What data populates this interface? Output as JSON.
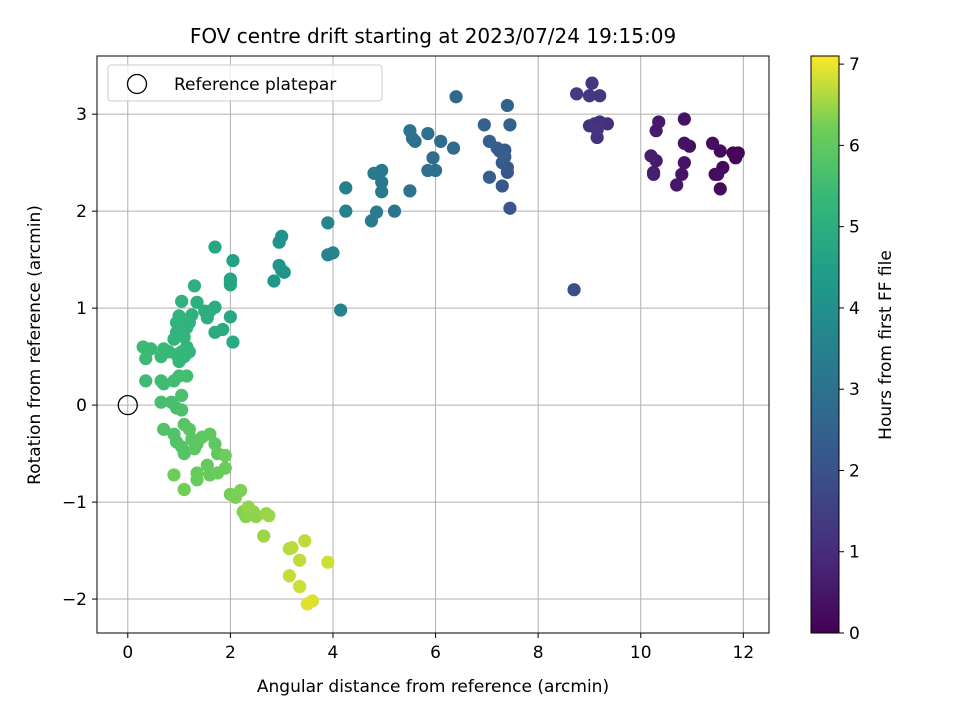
{
  "chart_data": {
    "type": "scatter",
    "title": "FOV centre drift starting at 2023/07/24 19:15:09",
    "xlabel": "Angular distance from reference (arcmin)",
    "ylabel": "Rotation from reference (arcmin)",
    "xlim": [
      -0.6,
      12.5
    ],
    "ylim": [
      -2.35,
      3.6
    ],
    "xticks": [
      0,
      2,
      4,
      6,
      8,
      10,
      12
    ],
    "yticks": [
      -2,
      -1,
      0,
      1,
      2,
      3
    ],
    "grid": true,
    "legend": {
      "position": "top-left",
      "entries": [
        "Reference platepar"
      ]
    },
    "reference_point": {
      "x": 0,
      "y": 0,
      "label": "Reference platepar"
    },
    "colorbar": {
      "label": "Hours from first FF file",
      "min": 0,
      "max": 7.1,
      "ticks": [
        0,
        1,
        2,
        3,
        4,
        5,
        6,
        7
      ],
      "colormap": "viridis"
    },
    "series": [
      {
        "values": [
          {
            "x": 11.9,
            "y": 2.6,
            "c": 0.05
          },
          {
            "x": 11.8,
            "y": 2.6,
            "c": 0.1
          },
          {
            "x": 11.85,
            "y": 2.55,
            "c": 0.12
          },
          {
            "x": 11.6,
            "y": 2.45,
            "c": 0.15
          },
          {
            "x": 11.55,
            "y": 2.62,
            "c": 0.2
          },
          {
            "x": 11.55,
            "y": 2.23,
            "c": 0.22
          },
          {
            "x": 11.45,
            "y": 2.38,
            "c": 0.25
          },
          {
            "x": 11.5,
            "y": 2.38,
            "c": 0.27
          },
          {
            "x": 11.4,
            "y": 2.7,
            "c": 0.3
          },
          {
            "x": 10.95,
            "y": 2.67,
            "c": 0.35
          },
          {
            "x": 10.85,
            "y": 2.7,
            "c": 0.38
          },
          {
            "x": 10.85,
            "y": 2.95,
            "c": 0.4
          },
          {
            "x": 10.85,
            "y": 2.5,
            "c": 0.42
          },
          {
            "x": 10.8,
            "y": 2.38,
            "c": 0.45
          },
          {
            "x": 10.7,
            "y": 2.27,
            "c": 0.48
          },
          {
            "x": 10.35,
            "y": 2.92,
            "c": 0.55
          },
          {
            "x": 10.3,
            "y": 2.83,
            "c": 0.58
          },
          {
            "x": 10.3,
            "y": 2.52,
            "c": 0.6
          },
          {
            "x": 10.25,
            "y": 2.4,
            "c": 0.62
          },
          {
            "x": 10.2,
            "y": 2.57,
            "c": 0.65
          },
          {
            "x": 10.25,
            "y": 2.38,
            "c": 0.68
          },
          {
            "x": 9.35,
            "y": 2.9,
            "c": 1.1
          },
          {
            "x": 9.2,
            "y": 2.92,
            "c": 1.12
          },
          {
            "x": 9.1,
            "y": 2.9,
            "c": 1.15
          },
          {
            "x": 9.0,
            "y": 2.88,
            "c": 1.18
          },
          {
            "x": 9.15,
            "y": 2.76,
            "c": 1.2
          },
          {
            "x": 9.15,
            "y": 2.84,
            "c": 1.22
          },
          {
            "x": 9.05,
            "y": 3.32,
            "c": 1.25
          },
          {
            "x": 9.2,
            "y": 3.19,
            "c": 1.28
          },
          {
            "x": 9.0,
            "y": 3.19,
            "c": 1.3
          },
          {
            "x": 8.75,
            "y": 3.21,
            "c": 1.35
          },
          {
            "x": 8.7,
            "y": 1.19,
            "c": 1.9
          },
          {
            "x": 7.45,
            "y": 2.03,
            "c": 2.1
          },
          {
            "x": 7.4,
            "y": 2.4,
            "c": 2.15
          },
          {
            "x": 7.4,
            "y": 2.45,
            "c": 2.18
          },
          {
            "x": 7.3,
            "y": 2.26,
            "c": 2.2
          },
          {
            "x": 7.3,
            "y": 2.5,
            "c": 2.25
          },
          {
            "x": 7.35,
            "y": 2.63,
            "c": 2.28
          },
          {
            "x": 7.25,
            "y": 2.62,
            "c": 2.3
          },
          {
            "x": 7.2,
            "y": 2.65,
            "c": 2.33
          },
          {
            "x": 7.35,
            "y": 2.56,
            "c": 2.35
          },
          {
            "x": 7.05,
            "y": 2.35,
            "c": 2.38
          },
          {
            "x": 7.05,
            "y": 2.72,
            "c": 2.4
          },
          {
            "x": 6.95,
            "y": 2.89,
            "c": 2.45
          },
          {
            "x": 7.4,
            "y": 3.09,
            "c": 2.5
          },
          {
            "x": 7.45,
            "y": 2.89,
            "c": 2.52
          },
          {
            "x": 6.4,
            "y": 3.18,
            "c": 2.7
          },
          {
            "x": 6.35,
            "y": 2.65,
            "c": 2.75
          },
          {
            "x": 6.1,
            "y": 2.72,
            "c": 2.8
          },
          {
            "x": 5.95,
            "y": 2.55,
            "c": 2.85
          },
          {
            "x": 6.0,
            "y": 2.42,
            "c": 2.88
          },
          {
            "x": 5.85,
            "y": 2.8,
            "c": 2.9
          },
          {
            "x": 5.85,
            "y": 2.42,
            "c": 2.92
          },
          {
            "x": 5.6,
            "y": 2.72,
            "c": 2.95
          },
          {
            "x": 5.55,
            "y": 2.75,
            "c": 2.97
          },
          {
            "x": 5.5,
            "y": 2.83,
            "c": 3.0
          },
          {
            "x": 5.5,
            "y": 2.21,
            "c": 3.05
          },
          {
            "x": 5.2,
            "y": 2.0,
            "c": 3.15
          },
          {
            "x": 4.95,
            "y": 2.42,
            "c": 3.2
          },
          {
            "x": 4.95,
            "y": 2.3,
            "c": 3.22
          },
          {
            "x": 4.95,
            "y": 2.2,
            "c": 3.25
          },
          {
            "x": 4.8,
            "y": 2.39,
            "c": 3.28
          },
          {
            "x": 4.85,
            "y": 1.99,
            "c": 3.3
          },
          {
            "x": 4.75,
            "y": 1.9,
            "c": 3.35
          },
          {
            "x": 4.25,
            "y": 2.24,
            "c": 3.45
          },
          {
            "x": 4.25,
            "y": 2.0,
            "c": 3.5
          },
          {
            "x": 4.15,
            "y": 0.98,
            "c": 3.55
          },
          {
            "x": 4.0,
            "y": 1.57,
            "c": 3.6
          },
          {
            "x": 3.9,
            "y": 1.55,
            "c": 3.62
          },
          {
            "x": 3.9,
            "y": 1.88,
            "c": 3.65
          },
          {
            "x": 3.0,
            "y": 1.74,
            "c": 4.0
          },
          {
            "x": 2.95,
            "y": 1.68,
            "c": 4.05
          },
          {
            "x": 3.05,
            "y": 1.37,
            "c": 4.1
          },
          {
            "x": 3.0,
            "y": 1.39,
            "c": 4.12
          },
          {
            "x": 2.95,
            "y": 1.44,
            "c": 4.15
          },
          {
            "x": 2.85,
            "y": 1.28,
            "c": 4.2
          },
          {
            "x": 2.05,
            "y": 1.49,
            "c": 4.6
          },
          {
            "x": 2.0,
            "y": 1.3,
            "c": 4.65
          },
          {
            "x": 2.0,
            "y": 1.27,
            "c": 4.68
          },
          {
            "x": 2.0,
            "y": 1.24,
            "c": 4.7
          },
          {
            "x": 1.7,
            "y": 1.63,
            "c": 4.75
          },
          {
            "x": 2.0,
            "y": 0.91,
            "c": 4.8
          },
          {
            "x": 2.05,
            "y": 0.65,
            "c": 4.85
          },
          {
            "x": 1.85,
            "y": 0.78,
            "c": 4.9
          },
          {
            "x": 1.7,
            "y": 0.75,
            "c": 4.92
          },
          {
            "x": 1.7,
            "y": 1.01,
            "c": 4.95
          },
          {
            "x": 1.6,
            "y": 0.97,
            "c": 4.97
          },
          {
            "x": 1.55,
            "y": 0.9,
            "c": 5.0
          },
          {
            "x": 1.5,
            "y": 0.97,
            "c": 5.02
          },
          {
            "x": 1.35,
            "y": 1.06,
            "c": 5.05
          },
          {
            "x": 1.3,
            "y": 1.23,
            "c": 5.07
          },
          {
            "x": 1.25,
            "y": 0.93,
            "c": 5.1
          },
          {
            "x": 1.2,
            "y": 0.85,
            "c": 5.12
          },
          {
            "x": 1.15,
            "y": 0.8,
            "c": 5.14
          },
          {
            "x": 1.05,
            "y": 1.07,
            "c": 5.15
          },
          {
            "x": 1.0,
            "y": 0.92,
            "c": 5.17
          },
          {
            "x": 0.95,
            "y": 0.85,
            "c": 5.18
          },
          {
            "x": 0.95,
            "y": 0.75,
            "c": 5.2
          },
          {
            "x": 0.9,
            "y": 0.68,
            "c": 5.22
          },
          {
            "x": 1.1,
            "y": 0.7,
            "c": 5.23
          },
          {
            "x": 1.15,
            "y": 0.6,
            "c": 5.25
          },
          {
            "x": 1.2,
            "y": 0.55,
            "c": 5.27
          },
          {
            "x": 1.1,
            "y": 0.5,
            "c": 5.28
          },
          {
            "x": 1.0,
            "y": 0.45,
            "c": 5.3
          },
          {
            "x": 1.05,
            "y": 0.55,
            "c": 5.32
          },
          {
            "x": 0.95,
            "y": 0.52,
            "c": 5.33
          },
          {
            "x": 0.8,
            "y": 0.55,
            "c": 5.35
          },
          {
            "x": 0.7,
            "y": 0.58,
            "c": 5.37
          },
          {
            "x": 0.65,
            "y": 0.5,
            "c": 5.38
          },
          {
            "x": 0.45,
            "y": 0.58,
            "c": 5.4
          },
          {
            "x": 0.3,
            "y": 0.6,
            "c": 5.42
          },
          {
            "x": 0.35,
            "y": 0.48,
            "c": 5.44
          },
          {
            "x": 0.35,
            "y": 0.25,
            "c": 5.46
          },
          {
            "x": 0.65,
            "y": 0.25,
            "c": 5.48
          },
          {
            "x": 0.7,
            "y": 0.22,
            "c": 5.5
          },
          {
            "x": 0.9,
            "y": 0.25,
            "c": 5.52
          },
          {
            "x": 1.0,
            "y": 0.3,
            "c": 5.54
          },
          {
            "x": 1.15,
            "y": 0.3,
            "c": 5.56
          },
          {
            "x": 0.65,
            "y": 0.03,
            "c": 5.6
          },
          {
            "x": 0.85,
            "y": 0.03,
            "c": 5.62
          },
          {
            "x": 0.95,
            "y": -0.03,
            "c": 5.64
          },
          {
            "x": 1.05,
            "y": -0.05,
            "c": 5.66
          },
          {
            "x": 1.05,
            "y": 0.1,
            "c": 5.68
          },
          {
            "x": 0.7,
            "y": -0.25,
            "c": 5.75
          },
          {
            "x": 0.9,
            "y": -0.3,
            "c": 5.78
          },
          {
            "x": 0.95,
            "y": -0.38,
            "c": 5.8
          },
          {
            "x": 1.05,
            "y": -0.43,
            "c": 5.82
          },
          {
            "x": 1.1,
            "y": -0.5,
            "c": 5.84
          },
          {
            "x": 1.1,
            "y": -0.2,
            "c": 5.86
          },
          {
            "x": 1.2,
            "y": -0.25,
            "c": 5.88
          },
          {
            "x": 1.25,
            "y": -0.35,
            "c": 5.9
          },
          {
            "x": 1.3,
            "y": -0.45,
            "c": 5.92
          },
          {
            "x": 1.35,
            "y": -0.4,
            "c": 5.94
          },
          {
            "x": 1.45,
            "y": -0.33,
            "c": 5.96
          },
          {
            "x": 1.6,
            "y": -0.3,
            "c": 5.98
          },
          {
            "x": 1.7,
            "y": -0.4,
            "c": 6.0
          },
          {
            "x": 1.75,
            "y": -0.5,
            "c": 6.02
          },
          {
            "x": 1.55,
            "y": -0.62,
            "c": 6.05
          },
          {
            "x": 1.6,
            "y": -0.72,
            "c": 6.07
          },
          {
            "x": 1.35,
            "y": -0.7,
            "c": 6.08
          },
          {
            "x": 1.35,
            "y": -0.77,
            "c": 6.1
          },
          {
            "x": 1.75,
            "y": -0.7,
            "c": 6.12
          },
          {
            "x": 1.9,
            "y": -0.65,
            "c": 6.14
          },
          {
            "x": 1.9,
            "y": -0.52,
            "c": 6.16
          },
          {
            "x": 0.9,
            "y": -0.72,
            "c": 6.18
          },
          {
            "x": 1.1,
            "y": -0.87,
            "c": 6.2
          },
          {
            "x": 2.0,
            "y": -0.92,
            "c": 6.25
          },
          {
            "x": 2.1,
            "y": -0.95,
            "c": 6.28
          },
          {
            "x": 2.2,
            "y": -0.88,
            "c": 6.3
          },
          {
            "x": 2.25,
            "y": -1.1,
            "c": 6.33
          },
          {
            "x": 2.3,
            "y": -1.15,
            "c": 6.35
          },
          {
            "x": 2.35,
            "y": -1.12,
            "c": 6.37
          },
          {
            "x": 2.45,
            "y": -1.1,
            "c": 6.4
          },
          {
            "x": 2.5,
            "y": -1.15,
            "c": 6.42
          },
          {
            "x": 2.35,
            "y": -1.05,
            "c": 6.44
          },
          {
            "x": 2.7,
            "y": -1.12,
            "c": 6.46
          },
          {
            "x": 2.75,
            "y": -1.14,
            "c": 6.48
          },
          {
            "x": 2.65,
            "y": -1.35,
            "c": 6.5
          },
          {
            "x": 3.15,
            "y": -1.48,
            "c": 6.65
          },
          {
            "x": 3.2,
            "y": -1.47,
            "c": 6.68
          },
          {
            "x": 3.45,
            "y": -1.4,
            "c": 6.7
          },
          {
            "x": 3.35,
            "y": -1.6,
            "c": 6.72
          },
          {
            "x": 3.15,
            "y": -1.76,
            "c": 6.75
          },
          {
            "x": 3.35,
            "y": -1.87,
            "c": 6.78
          },
          {
            "x": 3.9,
            "y": -1.62,
            "c": 6.82
          },
          {
            "x": 3.6,
            "y": -2.02,
            "c": 6.88
          },
          {
            "x": 3.5,
            "y": -2.05,
            "c": 6.92
          }
        ]
      }
    ]
  }
}
